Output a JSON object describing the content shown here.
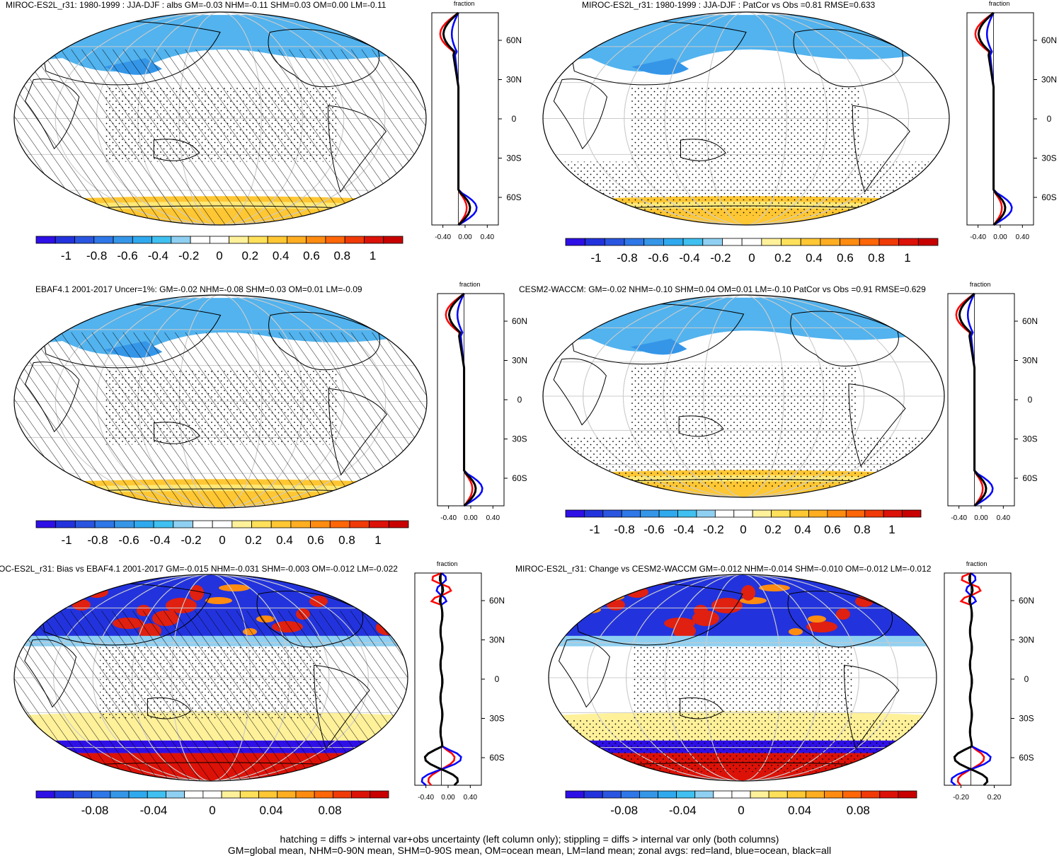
{
  "panels": [
    {
      "title": "MIROC-ES2L_r31: 1980-1999 : JJA-DJF : albs GM=-0.03 NHM=-0.11 SHM=0.03 OM=0.00 LM=-0.11",
      "hatch": true,
      "scale": "abs",
      "profile": "p1"
    },
    {
      "title": "MIROC-ES2L_r31: 1980-1999 : JJA-DJF : PatCor vs Obs =0.81 RMSE=0.633",
      "hatch": false,
      "scale": "abs",
      "profile": "p1"
    },
    {
      "title": "EBAF4.1 2001-2017 Uncer=1%: GM=-0.02 NHM=-0.08 SHM=0.03 OM=0.01 LM=-0.09",
      "hatch": true,
      "scale": "abs",
      "profile": "p2"
    },
    {
      "title": "CESM2-WACCM: GM=-0.02 NHM=-0.10 SHM=0.04 OM=0.01 LM=-0.10 PatCor vs Obs =0.91 RMSE=0.629",
      "hatch": false,
      "scale": "abs",
      "profile": "p2"
    },
    {
      "title": "OC-ES2L_r31: Bias vs EBAF4.1 2001-2017 GM=-0.015 NHM=-0.031 SHM=-0.003 OM=-0.012 LM=-0.022",
      "hatch": true,
      "scale": "diff",
      "profile": "p3"
    },
    {
      "title": "MIROC-ES2L_r31: Change vs CESM2-WACCM GM=-0.012 NHM=-0.014 SHM=-0.010 OM=-0.012 LM=-0.012",
      "hatch": false,
      "scale": "diff",
      "profile": "p4"
    }
  ],
  "colorbars": {
    "abs": {
      "labels": [
        "-1",
        "-0.8",
        "-0.6",
        "-0.4",
        "-0.2",
        "0",
        "0.2",
        "0.4",
        "0.6",
        "0.8",
        "1"
      ]
    },
    "diff": {
      "labels": [
        "-0.08",
        "-0.04",
        "0",
        "0.04",
        "0.08"
      ]
    }
  },
  "palette": [
    "#2e0fe6",
    "#2233dd",
    "#2a55e0",
    "#2e77e8",
    "#3596e8",
    "#2fa9ee",
    "#3fc0f0",
    "#8fd0f2",
    "#ffffff",
    "#ffffff",
    "#fff19a",
    "#ffe05a",
    "#ffc733",
    "#ffae22",
    "#ff8c10",
    "#ff6608",
    "#f03a08",
    "#dc1208",
    "#c80000"
  ],
  "zonal": {
    "fraction_label": "fraction",
    "lat_labels": [
      "60N",
      "30N",
      "0",
      "30S",
      "60S"
    ],
    "x_ticks_wide": [
      "-0.40",
      "0.00",
      "0.40"
    ],
    "x_ticks_narrow": [
      "-0.20",
      "0.20"
    ],
    "colors": {
      "land": "#ff0000",
      "ocean": "#0000ff",
      "all": "#000000"
    }
  },
  "footer": {
    "line1": "hatching = diffs > internal var+obs uncertainty (left column only); stippling = diffs > internal var only (both columns)",
    "line2": "GM=global mean, NHM=0-90N mean, SHM=0-90S mean, OM=ocean mean, LM=land mean; zonal avgs: red=land, blue=ocean, black=all"
  }
}
